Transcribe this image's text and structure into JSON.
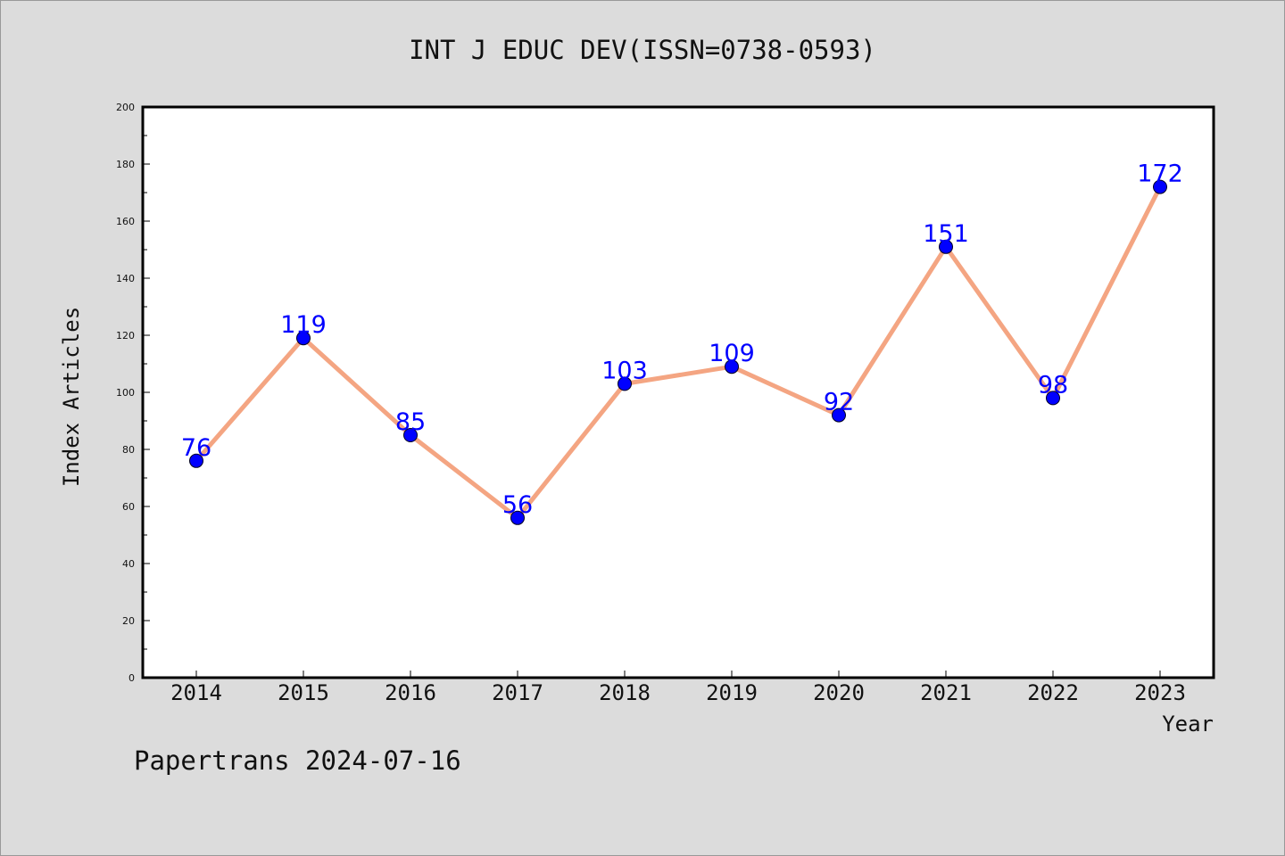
{
  "footer": "Papertrans 2024-07-16",
  "chart_data": {
    "type": "line",
    "title": "INT J EDUC DEV(ISSN=0738-0593)",
    "xlabel": "Year",
    "ylabel": "Index Articles",
    "categories": [
      "2014",
      "2015",
      "2016",
      "2017",
      "2018",
      "2019",
      "2020",
      "2021",
      "2022",
      "2023"
    ],
    "values": [
      76,
      119,
      85,
      56,
      103,
      109,
      92,
      151,
      98,
      172
    ],
    "data_labels": [
      "76",
      "119",
      "85",
      "56",
      "103",
      "109",
      "92",
      "151",
      "98",
      "172"
    ],
    "ylim": [
      0,
      200
    ],
    "yticks": [
      "0",
      "20",
      "40",
      "60",
      "80",
      "100",
      "120",
      "140",
      "160",
      "180",
      "200"
    ],
    "grid": false,
    "colors": {
      "line": "#f4a582",
      "marker": "#0000ff",
      "label": "#0000ff",
      "background": "#dcdcdc",
      "plot_background": "#ffffff"
    }
  }
}
